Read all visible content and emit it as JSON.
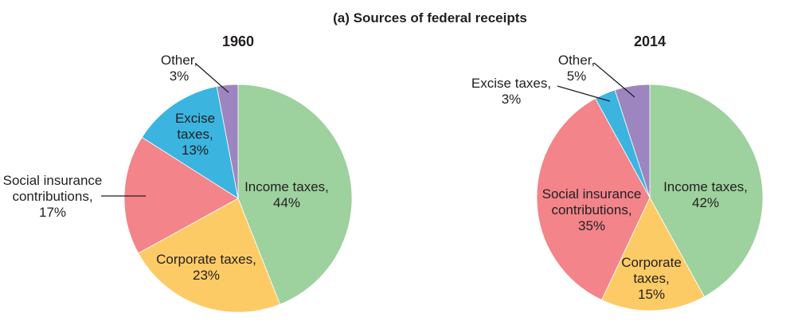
{
  "title": "(a) Sources of federal receipts",
  "chart_data": {
    "type": "pie",
    "title": "(a) Sources of federal receipts",
    "charts": [
      {
        "title": "1960",
        "slices": [
          {
            "name": "Income taxes",
            "value": 44,
            "label_lines": [
              "Income taxes,",
              "44%"
            ],
            "color": "#9dd19d"
          },
          {
            "name": "Corporate taxes",
            "value": 23,
            "label_lines": [
              "Corporate taxes,",
              "23%"
            ],
            "color": "#fdcb66"
          },
          {
            "name": "Social insurance contributions",
            "value": 17,
            "label_lines": [
              "Social insurance",
              "contributions,",
              "17%"
            ],
            "color": "#f2848a"
          },
          {
            "name": "Excise taxes",
            "value": 13,
            "label_lines": [
              "Excise",
              "taxes,",
              "13%"
            ],
            "color": "#3bb4e0"
          },
          {
            "name": "Other",
            "value": 3,
            "label_lines": [
              "Other,",
              "3%"
            ],
            "color": "#9d86bf"
          }
        ]
      },
      {
        "title": "2014",
        "slices": [
          {
            "name": "Income taxes",
            "value": 42,
            "label_lines": [
              "Income taxes,",
              "42%"
            ],
            "color": "#9dd19d"
          },
          {
            "name": "Corporate taxes",
            "value": 15,
            "label_lines": [
              "Corporate",
              "taxes,",
              "15%"
            ],
            "color": "#fdcb66"
          },
          {
            "name": "Social insurance contributions",
            "value": 35,
            "label_lines": [
              "Social insurance",
              "contributions,",
              "35%"
            ],
            "color": "#f2848a"
          },
          {
            "name": "Excise taxes",
            "value": 3,
            "label_lines": [
              "Excise taxes,",
              "3%"
            ],
            "color": "#3bb4e0"
          },
          {
            "name": "Other",
            "value": 5,
            "label_lines": [
              "Other,",
              "5%"
            ],
            "color": "#9d86bf"
          }
        ]
      }
    ],
    "start_angle": "12 o'clock",
    "direction": "clockwise"
  }
}
